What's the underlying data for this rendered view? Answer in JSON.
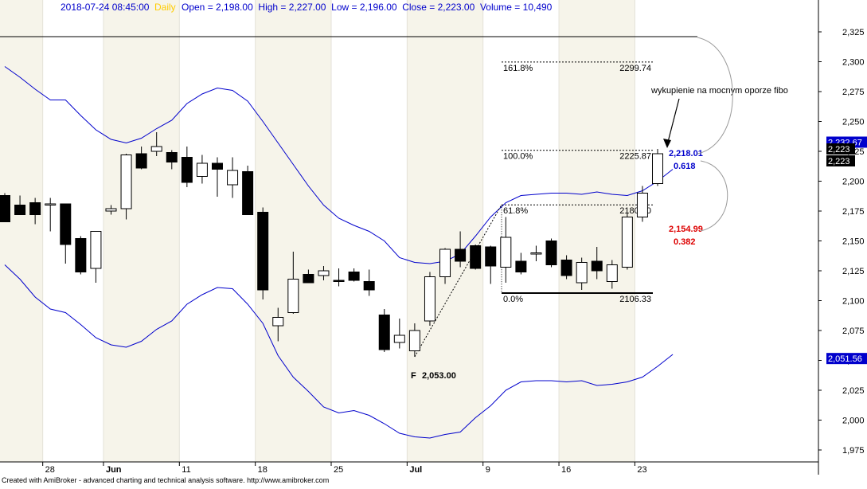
{
  "header": {
    "datetime": "2018-07-24 08:45:00",
    "interval": "Daily",
    "ohlcv_text": "Open = 2,198.00  High = 2,227.00  Low = 2,196.00  Close = 2,223.00  Volume = 10,490"
  },
  "footer": {
    "credits": "Created with AmiBroker - advanced charting and technical analysis software. http://www.amibroker.com"
  },
  "colors": {
    "band": "#0000cc",
    "bull_fill": "#ffffff",
    "bear_fill": "#000000",
    "weekend_shade": "#f6f4ea",
    "fib_high_color": "#0000cc",
    "fib_low_color": "#dd0000",
    "grid": "#cccccc"
  },
  "chart_data": {
    "type": "candlestick",
    "title": "",
    "xlabel": "",
    "ylabel": "",
    "ylim": [
      1965,
      2342
    ],
    "y_ticks": [
      1975,
      2000,
      2025,
      2050,
      2075,
      2100,
      2125,
      2150,
      2175,
      2200,
      2225,
      2250,
      2275,
      2300,
      2325
    ],
    "y_tick_labels": [
      "1,975",
      "2,000",
      "2,025",
      "2,050",
      "2,075",
      "2,100",
      "2,125",
      "2,150",
      "2,175",
      "2,200",
      "2,225",
      "2,250",
      "2,275",
      "2,300",
      "2,325"
    ],
    "x_ticks": [
      {
        "label": "28",
        "index": 3
      },
      {
        "label": "Jun",
        "index": 7
      },
      {
        "label": "11",
        "index": 12
      },
      {
        "label": "18",
        "index": 17
      },
      {
        "label": "25",
        "index": 22
      },
      {
        "label": "Jul",
        "index": 27
      },
      {
        "label": "9",
        "index": 32
      },
      {
        "label": "16",
        "index": 37
      },
      {
        "label": "23",
        "index": 42
      }
    ],
    "candles": [
      {
        "o": 2188,
        "h": 2190,
        "l": 2166,
        "c": 2166
      },
      {
        "o": 2180,
        "h": 2188,
        "l": 2174,
        "c": 2172
      },
      {
        "o": 2182,
        "h": 2186,
        "l": 2164,
        "c": 2172
      },
      {
        "o": 2180,
        "h": 2186,
        "l": 2158,
        "c": 2181
      },
      {
        "o": 2181,
        "h": 2181,
        "l": 2131,
        "c": 2147
      },
      {
        "o": 2152,
        "h": 2154,
        "l": 2122,
        "c": 2124
      },
      {
        "o": 2127,
        "h": 2158,
        "l": 2115,
        "c": 2158
      },
      {
        "o": 2175,
        "h": 2180,
        "l": 2172,
        "c": 2177
      },
      {
        "o": 2177,
        "h": 2223,
        "l": 2168,
        "c": 2222
      },
      {
        "o": 2223,
        "h": 2229,
        "l": 2210,
        "c": 2211
      },
      {
        "o": 2225,
        "h": 2241,
        "l": 2221,
        "c": 2229
      },
      {
        "o": 2224,
        "h": 2226,
        "l": 2210,
        "c": 2216
      },
      {
        "o": 2220,
        "h": 2229,
        "l": 2195,
        "c": 2199
      },
      {
        "o": 2204,
        "h": 2222,
        "l": 2198,
        "c": 2215
      },
      {
        "o": 2215,
        "h": 2220,
        "l": 2187,
        "c": 2210
      },
      {
        "o": 2197,
        "h": 2220,
        "l": 2186,
        "c": 2209
      },
      {
        "o": 2208,
        "h": 2213,
        "l": 2172,
        "c": 2172
      },
      {
        "o": 2174,
        "h": 2178,
        "l": 2101,
        "c": 2109
      },
      {
        "o": 2079,
        "h": 2094,
        "l": 2066,
        "c": 2086
      },
      {
        "o": 2090,
        "h": 2141,
        "l": 2089,
        "c": 2118
      },
      {
        "o": 2122,
        "h": 2126,
        "l": 2116,
        "c": 2115
      },
      {
        "o": 2121,
        "h": 2129,
        "l": 2117,
        "c": 2125
      },
      {
        "o": 2117,
        "h": 2127,
        "l": 2112,
        "c": 2116
      },
      {
        "o": 2124,
        "h": 2127,
        "l": 2116,
        "c": 2117
      },
      {
        "o": 2116,
        "h": 2126,
        "l": 2104,
        "c": 2109
      },
      {
        "o": 2088,
        "h": 2093,
        "l": 2057,
        "c": 2059
      },
      {
        "o": 2065,
        "h": 2085,
        "l": 2060,
        "c": 2071
      },
      {
        "o": 2058,
        "h": 2081,
        "l": 2053,
        "c": 2075
      },
      {
        "o": 2083,
        "h": 2124,
        "l": 2079,
        "c": 2120
      },
      {
        "o": 2120,
        "h": 2144,
        "l": 2114,
        "c": 2143
      },
      {
        "o": 2143,
        "h": 2158,
        "l": 2128,
        "c": 2133
      },
      {
        "o": 2146,
        "h": 2147,
        "l": 2126,
        "c": 2127
      },
      {
        "o": 2145,
        "h": 2146,
        "l": 2114,
        "c": 2129
      },
      {
        "o": 2128,
        "h": 2170,
        "l": 2115,
        "c": 2153
      },
      {
        "o": 2133,
        "h": 2140,
        "l": 2122,
        "c": 2124
      },
      {
        "o": 2139,
        "h": 2146,
        "l": 2133,
        "c": 2140
      },
      {
        "o": 2150,
        "h": 2152,
        "l": 2128,
        "c": 2130
      },
      {
        "o": 2134,
        "h": 2138,
        "l": 2118,
        "c": 2121
      },
      {
        "o": 2115,
        "h": 2136,
        "l": 2109,
        "c": 2132
      },
      {
        "o": 2133,
        "h": 2145,
        "l": 2118,
        "c": 2125
      },
      {
        "o": 2116,
        "h": 2134,
        "l": 2110,
        "c": 2130
      },
      {
        "o": 2128,
        "h": 2173,
        "l": 2126,
        "c": 2170
      },
      {
        "o": 2170,
        "h": 2196,
        "l": 2166,
        "c": 2190
      },
      {
        "o": 2198,
        "h": 2227,
        "l": 2196,
        "c": 2223
      }
    ],
    "series": [
      {
        "values": [
          2296,
          2287,
          2277,
          2268,
          2268,
          2255,
          2243,
          2235,
          2232,
          2236,
          2244,
          2251,
          2265,
          2273,
          2278,
          2276,
          2267,
          2250,
          2232,
          2214,
          2196,
          2180,
          2169,
          2163,
          2158,
          2150,
          2136,
          2132,
          2131,
          2133,
          2139,
          2154,
          2170,
          2182,
          2188,
          2189,
          2190,
          2190,
          2189,
          2191,
          2189,
          2188,
          2192,
          2200,
          2210
        ]
      },
      {
        "values": [
          2130,
          2118,
          2103,
          2093,
          2090,
          2080,
          2069,
          2063,
          2061,
          2066,
          2076,
          2083,
          2097,
          2105,
          2111,
          2110,
          2097,
          2081,
          2054,
          2036,
          2024,
          2011,
          2006,
          2008,
          2004,
          1997,
          1989,
          1986,
          1985,
          1988,
          1990,
          2002,
          2012,
          2025,
          2032,
          2033,
          2033,
          2032,
          2033,
          2029,
          2030,
          2032,
          2036,
          2045,
          2055
        ]
      }
    ],
    "horizontal_line": {
      "value": 2321
    },
    "fib_levels": [
      {
        "pct": "161.8%",
        "value": "2299.74",
        "price": 2299.74
      },
      {
        "pct": "100.0%",
        "value": "2225.87",
        "price": 2225.87
      },
      {
        "pct": "61.8%",
        "value": "2180.20",
        "price": 2180.2
      },
      {
        "pct": "0.0%",
        "value": "2106.33",
        "price": 2106.33
      }
    ],
    "fib_start_label": "F",
    "fib_start_value": "2,053.00",
    "annotations": {
      "note": "wykupienie na mocnym oporze fibo",
      "upper_price": "2,218.01",
      "upper_ratio": "0.618",
      "lower_price": "2,154.99",
      "lower_ratio": "0.382"
    },
    "price_labels": [
      {
        "text": "2,232.67",
        "price": 2232.67
      },
      {
        "text": "2,223",
        "price": 2223
      },
      {
        "text": "2,223",
        "price": 2223
      },
      {
        "text": "2,051.56",
        "price": 2051.56
      }
    ]
  }
}
